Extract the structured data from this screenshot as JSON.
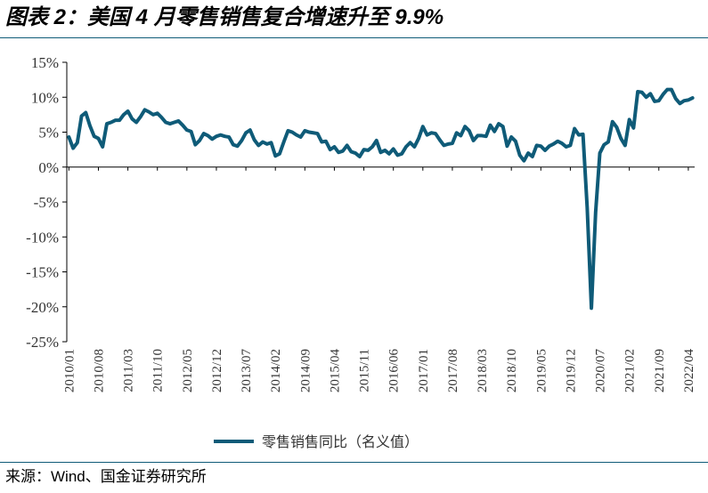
{
  "title": "图表 2：美国 4 月零售销售复合增速升至 9.9%",
  "source": "来源：Wind、国金证券研究所",
  "colors": {
    "line": "#0f5b78",
    "axis": "#000000",
    "rule": "#0f5b78"
  },
  "chart_data": {
    "type": "line",
    "title": "美国 4 月零售销售复合增速升至 9.9%",
    "xlabel": "",
    "ylabel": "",
    "ylim": [
      -25,
      15
    ],
    "y_ticks": [
      15,
      10,
      5,
      0,
      -5,
      -10,
      -15,
      -20,
      -25
    ],
    "y_tick_labels": [
      "15%",
      "10%",
      "5%",
      "0%",
      "-5%",
      "-10%",
      "-15%",
      "-20%",
      "-25%"
    ],
    "x_tick_labels": [
      "2010/01",
      "2010/08",
      "2011/03",
      "2011/10",
      "2012/05",
      "2012/12",
      "2013/07",
      "2014/02",
      "2014/09",
      "2015/04",
      "2015/11",
      "2016/06",
      "2017/01",
      "2017/08",
      "2018/03",
      "2018/10",
      "2019/05",
      "2019/12",
      "2020/07",
      "2021/02",
      "2021/09",
      "2022/04"
    ],
    "start": "2010/01",
    "end": "2022/04",
    "legend_position": "bottom",
    "series": [
      {
        "name": "零售销售同比（名义值）",
        "values": [
          4.3,
          2.7,
          3.5,
          7.3,
          7.8,
          5.9,
          4.4,
          4.1,
          2.9,
          6.2,
          6.4,
          6.7,
          6.7,
          7.5,
          8.0,
          6.9,
          6.4,
          7.2,
          8.2,
          7.9,
          7.5,
          7.7,
          7.1,
          6.4,
          6.2,
          6.4,
          6.6,
          6.0,
          5.3,
          5.1,
          3.2,
          3.8,
          4.8,
          4.5,
          4.0,
          4.4,
          4.6,
          4.4,
          4.3,
          3.2,
          3.0,
          3.8,
          4.9,
          5.3,
          3.9,
          3.1,
          3.6,
          3.3,
          3.5,
          1.6,
          1.9,
          3.6,
          5.2,
          5.0,
          4.6,
          4.3,
          5.2,
          5.0,
          4.9,
          4.8,
          3.6,
          3.7,
          2.5,
          2.9,
          2.1,
          2.3,
          3.1,
          2.2,
          2.0,
          1.5,
          2.5,
          2.4,
          2.9,
          3.8,
          2.1,
          2.4,
          1.9,
          2.6,
          1.7,
          1.9,
          2.9,
          3.5,
          2.9,
          4.1,
          5.8,
          4.6,
          4.9,
          4.8,
          3.9,
          3.1,
          3.3,
          3.4,
          4.9,
          4.5,
          5.8,
          5.2,
          3.8,
          4.5,
          4.5,
          4.4,
          6.0,
          5.1,
          6.2,
          5.8,
          3.0,
          4.3,
          3.7,
          1.7,
          0.9,
          2.0,
          1.5,
          3.1,
          3.0,
          2.4,
          3.0,
          3.3,
          3.7,
          3.4,
          2.9,
          3.1,
          5.5,
          4.6,
          4.7,
          -5.8,
          -20.2,
          -6.5,
          2.0,
          3.2,
          3.6,
          6.5,
          5.7,
          4.1,
          3.1,
          6.8,
          5.6,
          10.8,
          10.7,
          10.0,
          10.5,
          9.4,
          9.5,
          10.4,
          11.1,
          11.1,
          9.8,
          9.1,
          9.5,
          9.6,
          9.9
        ]
      }
    ]
  }
}
